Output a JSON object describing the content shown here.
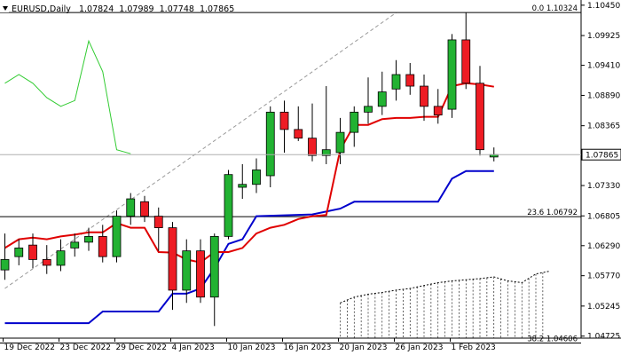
{
  "chart_data": {
    "type": "candlestick",
    "symbol": "EURUSD",
    "timeframe": "Daily",
    "header_ohlc": [
      "1.07824",
      "1.07989",
      "1.07748",
      "1.07865"
    ],
    "current_price": "1.07865",
    "y_tick_labels": [
      "1.10450",
      "1.09925",
      "1.09410",
      "1.08890",
      "1.08365",
      "1.07330",
      "1.06805",
      "1.06290",
      "1.05770",
      "1.05245",
      "1.04725"
    ],
    "y_ticks": [
      1.1045,
      1.09925,
      1.0941,
      1.0889,
      1.08365,
      1.0733,
      1.06805,
      1.0629,
      1.0577,
      1.05245,
      1.04725
    ],
    "ylim": [
      1.0469,
      1.1054
    ],
    "x_tick_labels": [
      {
        "label": "19 Dec 2022",
        "index": 0
      },
      {
        "label": "23 Dec 2022",
        "index": 4
      },
      {
        "label": "29 Dec 2022",
        "index": 8
      },
      {
        "label": "4 Jan 2023",
        "index": 12
      },
      {
        "label": "10 Jan 2023",
        "index": 16
      },
      {
        "label": "16 Jan 2023",
        "index": 20
      },
      {
        "label": "20 Jan 2023",
        "index": 24
      },
      {
        "label": "26 Jan 2023",
        "index": 28
      },
      {
        "label": "1 Feb 2023",
        "index": 32
      }
    ],
    "fib_levels": [
      {
        "label": "0.0 1.10324",
        "value": 1.10324
      },
      {
        "label": "23.6 1.06792",
        "value": 1.06792
      },
      {
        "label": "38.2 1.04606",
        "value": 1.04606
      }
    ],
    "candles": [
      {
        "o": 1.0587,
        "h": 1.065,
        "l": 1.057,
        "c": 1.0605
      },
      {
        "o": 1.061,
        "h": 1.064,
        "l": 1.0595,
        "c": 1.0625
      },
      {
        "o": 1.063,
        "h": 1.065,
        "l": 1.059,
        "c": 1.0605
      },
      {
        "o": 1.0605,
        "h": 1.063,
        "l": 1.058,
        "c": 1.0595
      },
      {
        "o": 1.0595,
        "h": 1.064,
        "l": 1.0585,
        "c": 1.062
      },
      {
        "o": 1.0625,
        "h": 1.065,
        "l": 1.061,
        "c": 1.0635
      },
      {
        "o": 1.0635,
        "h": 1.066,
        "l": 1.062,
        "c": 1.0645
      },
      {
        "o": 1.0645,
        "h": 1.0665,
        "l": 1.06,
        "c": 1.061
      },
      {
        "o": 1.061,
        "h": 1.069,
        "l": 1.06,
        "c": 1.068
      },
      {
        "o": 1.068,
        "h": 1.072,
        "l": 1.0665,
        "c": 1.071
      },
      {
        "o": 1.0705,
        "h": 1.0715,
        "l": 1.067,
        "c": 1.068
      },
      {
        "o": 1.068,
        "h": 1.0695,
        "l": 1.062,
        "c": 1.066
      },
      {
        "o": 1.066,
        "h": 1.067,
        "l": 1.0518,
        "c": 1.0552
      },
      {
        "o": 1.0552,
        "h": 1.064,
        "l": 1.053,
        "c": 1.062
      },
      {
        "o": 1.062,
        "h": 1.064,
        "l": 1.053,
        "c": 1.054
      },
      {
        "o": 1.054,
        "h": 1.065,
        "l": 1.049,
        "c": 1.0645
      },
      {
        "o": 1.0645,
        "h": 1.076,
        "l": 1.064,
        "c": 1.0752
      },
      {
        "o": 1.073,
        "h": 1.077,
        "l": 1.071,
        "c": 1.0735
      },
      {
        "o": 1.0735,
        "h": 1.078,
        "l": 1.072,
        "c": 1.076
      },
      {
        "o": 1.075,
        "h": 1.087,
        "l": 1.073,
        "c": 1.086
      },
      {
        "o": 1.086,
        "h": 1.088,
        "l": 1.079,
        "c": 1.083
      },
      {
        "o": 1.083,
        "h": 1.087,
        "l": 1.081,
        "c": 1.0815
      },
      {
        "o": 1.0815,
        "h": 1.0875,
        "l": 1.0775,
        "c": 1.0785
      },
      {
        "o": 1.0785,
        "h": 1.0905,
        "l": 1.077,
        "c": 1.0795
      },
      {
        "o": 1.079,
        "h": 1.085,
        "l": 1.077,
        "c": 1.0825
      },
      {
        "o": 1.0825,
        "h": 1.087,
        "l": 1.08,
        "c": 1.086
      },
      {
        "o": 1.086,
        "h": 1.092,
        "l": 1.084,
        "c": 1.087
      },
      {
        "o": 1.087,
        "h": 1.093,
        "l": 1.0855,
        "c": 1.0895
      },
      {
        "o": 1.09,
        "h": 1.095,
        "l": 1.088,
        "c": 1.0925
      },
      {
        "o": 1.0925,
        "h": 1.0945,
        "l": 1.089,
        "c": 1.0905
      },
      {
        "o": 1.0905,
        "h": 1.0925,
        "l": 1.0845,
        "c": 1.087
      },
      {
        "o": 1.087,
        "h": 1.09,
        "l": 1.084,
        "c": 1.0855
      },
      {
        "o": 1.0865,
        "h": 1.0995,
        "l": 1.085,
        "c": 1.0985
      },
      {
        "o": 1.0985,
        "h": 1.1032,
        "l": 1.09,
        "c": 1.091
      },
      {
        "o": 1.091,
        "h": 1.094,
        "l": 1.0785,
        "c": 1.0795
      },
      {
        "o": 1.07824,
        "h": 1.07989,
        "l": 1.07748,
        "c": 1.07865
      }
    ],
    "red_line": [
      [
        0,
        1.0625
      ],
      [
        1,
        1.064
      ],
      [
        2,
        1.0643
      ],
      [
        3,
        1.064
      ],
      [
        4,
        1.0645
      ],
      [
        5,
        1.0648
      ],
      [
        6,
        1.0652
      ],
      [
        7,
        1.0652
      ],
      [
        8,
        1.0668
      ],
      [
        9,
        1.066
      ],
      [
        10,
        1.066
      ],
      [
        11,
        1.0618
      ],
      [
        12,
        1.0617
      ],
      [
        13,
        1.0605
      ],
      [
        14,
        1.06
      ],
      [
        15,
        1.0618
      ],
      [
        16,
        1.0618
      ],
      [
        17,
        1.0625
      ],
      [
        18,
        1.065
      ],
      [
        19,
        1.066
      ],
      [
        20,
        1.0665
      ],
      [
        21,
        1.0675
      ],
      [
        22,
        1.068
      ],
      [
        23,
        1.0682
      ],
      [
        24,
        1.0795
      ],
      [
        25,
        1.0838
      ],
      [
        26,
        1.0838
      ],
      [
        27,
        1.0848
      ],
      [
        28,
        1.085
      ],
      [
        29,
        1.085
      ],
      [
        30,
        1.0852
      ],
      [
        31,
        1.0852
      ],
      [
        32,
        1.0905
      ],
      [
        33,
        1.091
      ],
      [
        34,
        1.0908
      ],
      [
        35,
        1.0904
      ]
    ],
    "blue_line": [
      [
        0,
        1.0495
      ],
      [
        6,
        1.0495
      ],
      [
        7,
        1.0515
      ],
      [
        11,
        1.0515
      ],
      [
        12,
        1.0546
      ],
      [
        13,
        1.0546
      ],
      [
        14,
        1.0555
      ],
      [
        15,
        1.059
      ],
      [
        16,
        1.0632
      ],
      [
        17,
        1.064
      ],
      [
        18,
        1.068
      ],
      [
        22,
        1.0683
      ],
      [
        24,
        1.0693
      ],
      [
        25,
        1.0705
      ],
      [
        31,
        1.0705
      ],
      [
        32,
        1.0745
      ],
      [
        33,
        1.0758
      ],
      [
        35,
        1.0758
      ]
    ],
    "green_line": [
      [
        0,
        1.091
      ],
      [
        1,
        1.0925
      ],
      [
        2,
        1.091
      ],
      [
        3,
        1.0885
      ],
      [
        4,
        1.087
      ],
      [
        5,
        1.088
      ],
      [
        6,
        1.0983
      ],
      [
        7,
        1.093
      ],
      [
        8,
        1.0795
      ],
      [
        9,
        1.0788
      ]
    ],
    "cloud_top": [
      [
        24,
        1.053
      ],
      [
        25,
        1.054
      ],
      [
        26,
        1.0545
      ],
      [
        27,
        1.0548
      ],
      [
        28,
        1.0552
      ],
      [
        29,
        1.0555
      ],
      [
        30,
        1.056
      ],
      [
        31,
        1.0565
      ],
      [
        32,
        1.0568
      ],
      [
        33,
        1.057
      ],
      [
        34,
        1.0572
      ],
      [
        35,
        1.0575
      ],
      [
        36,
        1.0568
      ],
      [
        37,
        1.0565
      ],
      [
        38,
        1.058
      ],
      [
        39,
        1.0585
      ]
    ],
    "trend_line": [
      [
        0,
        1.0555
      ],
      [
        28,
        1.1032
      ]
    ],
    "colors": {
      "bull": "#22b232",
      "bear": "#ee1c24",
      "red_line": "#e00000",
      "blue_line": "#0000cc",
      "green_line": "#33cc33",
      "cloud": "#000000",
      "trend": "#999999",
      "fib": "#000000"
    }
  }
}
